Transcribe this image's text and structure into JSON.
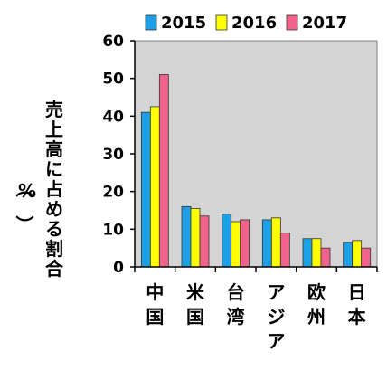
{
  "chart_data": {
    "type": "bar",
    "categories": [
      "中国",
      "米国",
      "台湾",
      "アジア",
      "欧州",
      "日本"
    ],
    "series": [
      {
        "name": "2015",
        "values": [
          41,
          16,
          14,
          12.5,
          7.5,
          6.5
        ]
      },
      {
        "name": "2016",
        "values": [
          42.5,
          15.5,
          12,
          13,
          7.5,
          7
        ]
      },
      {
        "name": "2017",
        "values": [
          51,
          13.5,
          12.5,
          9,
          5,
          5
        ]
      }
    ],
    "colors": [
      "#1EA0E6",
      "#FFFF00",
      "#F0648C"
    ],
    "plot_background": "#D4D4D4",
    "ylabel": "売上高に占める割合（%）",
    "ylim": [
      0,
      60
    ],
    "yticks": [
      "0",
      "10",
      "20",
      "30",
      "40",
      "50",
      "60"
    ],
    "legend_position": "top",
    "grid": false
  }
}
